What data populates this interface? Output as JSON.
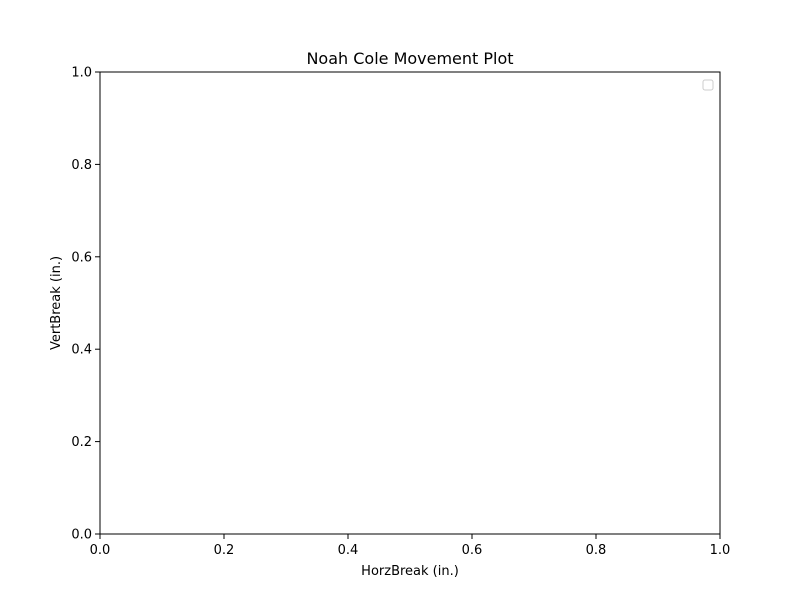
{
  "chart_data": {
    "type": "scatter",
    "title": "Noah Cole Movement Plot",
    "xlabel": "HorzBreak (in.)",
    "ylabel": "VertBreak (in.)",
    "xlim": [
      0,
      1
    ],
    "ylim": [
      0,
      1
    ],
    "x_ticks": [
      "0.0",
      "0.2",
      "0.4",
      "0.6",
      "0.8",
      "1.0"
    ],
    "y_ticks": [
      "0.0",
      "0.2",
      "0.4",
      "0.6",
      "0.8",
      "1.0"
    ],
    "series": [],
    "grid": false,
    "legend": {
      "placement": "top-right",
      "entries": []
    }
  }
}
